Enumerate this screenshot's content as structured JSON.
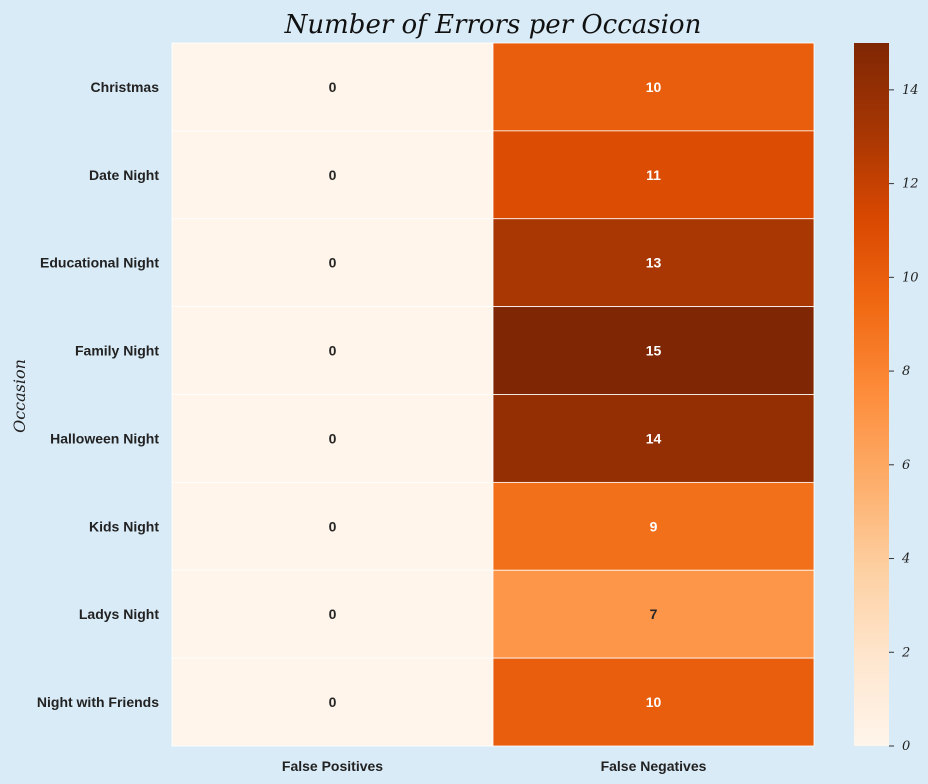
{
  "chart_data": {
    "type": "heatmap",
    "title": "Number of Errors per Occasion",
    "xlabel": "",
    "ylabel": "Occasion",
    "rows": [
      "Christmas",
      "Date Night",
      "Educational Night",
      "Family Night",
      "Halloween Night",
      "Kids Night",
      "Ladys Night",
      "Night with Friends"
    ],
    "columns": [
      "False Positives",
      "False Negatives"
    ],
    "values": [
      [
        0,
        10
      ],
      [
        0,
        11
      ],
      [
        0,
        13
      ],
      [
        0,
        15
      ],
      [
        0,
        14
      ],
      [
        0,
        9
      ],
      [
        0,
        7
      ],
      [
        0,
        10
      ]
    ],
    "colorbar": {
      "min": 0,
      "max": 15,
      "ticks": [
        0,
        2,
        4,
        6,
        8,
        10,
        12,
        14
      ],
      "colormap": "Oranges"
    },
    "annotations": "cell values shown"
  }
}
